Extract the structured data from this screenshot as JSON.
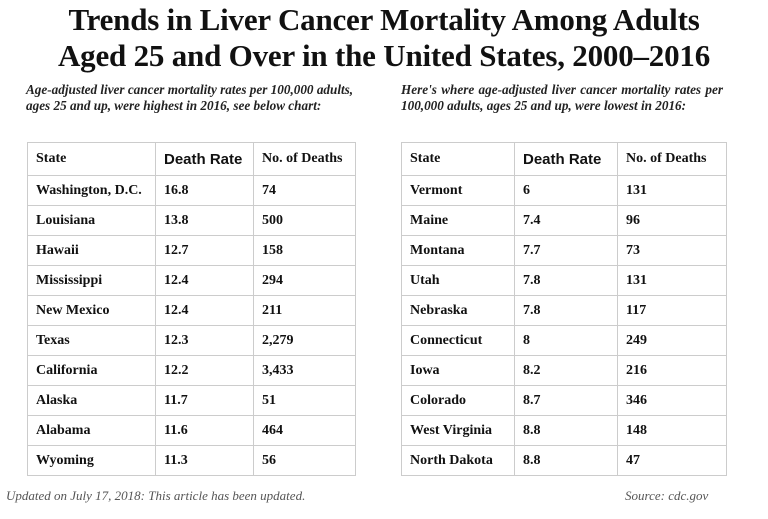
{
  "title_line1": "Trends in Liver Cancer Mortality Among Adults",
  "title_line2": "Aged 25 and Over in the United States, 2000–2016",
  "left": {
    "caption": "Age-adjusted liver cancer mortality rates per 100,000 adults, ages 25 and up, were highest in 2016, see below chart:",
    "headers": [
      "State",
      "Death Rate",
      "No. of Deaths"
    ],
    "rows": [
      [
        "Washington, D.C.",
        "16.8",
        "74"
      ],
      [
        "Louisiana",
        "13.8",
        "500"
      ],
      [
        "Hawaii",
        "12.7",
        "158"
      ],
      [
        "Mississippi",
        "12.4",
        "294"
      ],
      [
        "New Mexico",
        "12.4",
        "211"
      ],
      [
        "Texas",
        "12.3",
        "2,279"
      ],
      [
        "California",
        "12.2",
        "3,433"
      ],
      [
        "Alaska",
        "11.7",
        "51"
      ],
      [
        "Alabama",
        "11.6",
        "464"
      ],
      [
        "Wyoming",
        "11.3",
        "56"
      ]
    ]
  },
  "right": {
    "caption": "Here's where age-adjusted liver cancer mortality rates per 100,000 adults, ages 25 and up, were lowest in 2016:",
    "headers": [
      "State",
      "Death Rate",
      "No. of Deaths"
    ],
    "rows": [
      [
        "Vermont",
        "6",
        "131"
      ],
      [
        "Maine",
        "7.4",
        "96"
      ],
      [
        "Montana",
        "7.7",
        "73"
      ],
      [
        "Utah",
        "7.8",
        "131"
      ],
      [
        "Nebraska",
        "7.8",
        "117"
      ],
      [
        "Connecticut",
        "8",
        "249"
      ],
      [
        "Iowa",
        "8.2",
        "216"
      ],
      [
        "Colorado",
        "8.7",
        "346"
      ],
      [
        "West Virginia",
        "8.8",
        "148"
      ],
      [
        "North Dakota",
        "8.8",
        "47"
      ]
    ]
  },
  "footer_left": "Updated on July 17, 2018: This article has been updated.",
  "footer_right": "Source: cdc.gov"
}
